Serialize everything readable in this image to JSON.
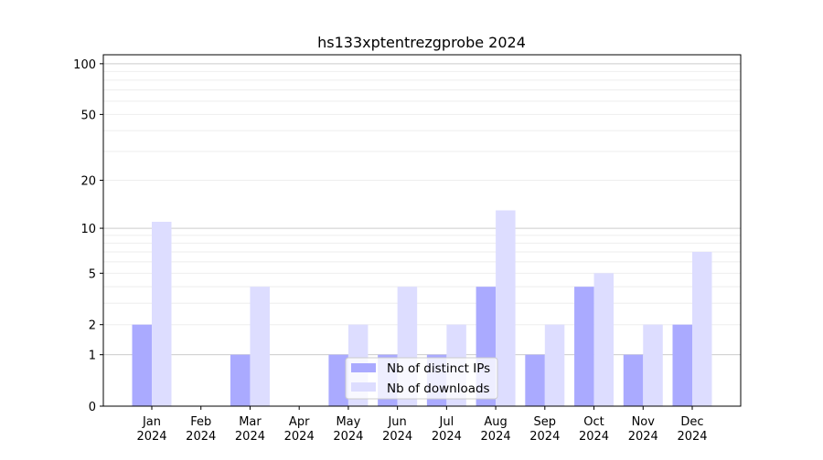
{
  "chart_data": {
    "type": "bar",
    "title": "hs133xptentrezgprobe 2024",
    "xlabel": "",
    "ylabel": "",
    "y_scale": "log(1+y)",
    "ylim": [
      0,
      113
    ],
    "y_ticks": [
      0,
      1,
      2,
      5,
      10,
      20,
      50,
      100
    ],
    "grid": true,
    "legend_position": "lower-center",
    "categories": [
      "Jan\n2024",
      "Feb\n2024",
      "Mar\n2024",
      "Apr\n2024",
      "May\n2024",
      "Jun\n2024",
      "Jul\n2024",
      "Aug\n2024",
      "Sep\n2024",
      "Oct\n2024",
      "Nov\n2024",
      "Dec\n2024"
    ],
    "series": [
      {
        "name": "Nb of distinct IPs",
        "color": "#aaaaff",
        "values": [
          2,
          0,
          1,
          0,
          1,
          1,
          1,
          4,
          1,
          4,
          1,
          2
        ]
      },
      {
        "name": "Nb of downloads",
        "color": "#ddddff",
        "values": [
          11,
          0,
          4,
          0,
          2,
          4,
          2,
          13,
          2,
          5,
          2,
          7
        ]
      }
    ]
  }
}
